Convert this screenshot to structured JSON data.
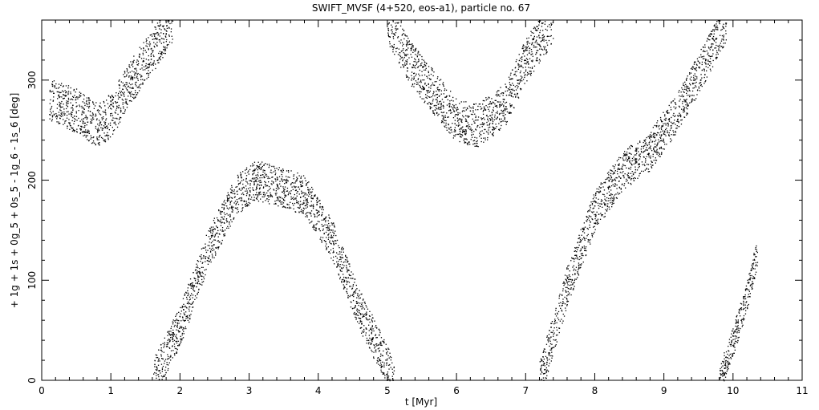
{
  "chart_data": {
    "type": "scatter",
    "title": "SWIFT_MVSF (4+520, eos-a1), particle no. 67",
    "xlabel": "t [Myr]",
    "ylabel": "+ 1g + 1s + 0g_5 + 0s_5 - 1g_6 - 1s_6 [deg]",
    "xlim": [
      0,
      11
    ],
    "ylim": [
      0,
      360
    ],
    "xticks": [
      0,
      1,
      2,
      3,
      4,
      5,
      6,
      7,
      8,
      9,
      10,
      11
    ],
    "yticks": [
      0,
      100,
      200,
      300
    ],
    "grid": false,
    "marker": "dot",
    "color": "#000000",
    "series": [
      {
        "x": [
          0.1,
          0.5,
          0.8,
          1.0,
          1.3,
          1.6,
          1.9
        ],
        "y": [
          280,
          270,
          255,
          265,
          300,
          330,
          360
        ],
        "spread": 22
      },
      {
        "x": [
          1.6,
          2.0,
          2.4,
          2.8,
          3.1,
          3.4,
          3.8,
          4.2,
          4.6,
          5.1
        ],
        "y": [
          0,
          55,
          130,
          185,
          200,
          195,
          185,
          140,
          70,
          0
        ],
        "spread": 20
      },
      {
        "x": [
          5.0,
          5.3,
          5.7,
          6.0,
          6.3,
          6.7,
          7.0,
          7.4
        ],
        "y": [
          360,
          320,
          285,
          260,
          255,
          275,
          320,
          360
        ],
        "spread": 22
      },
      {
        "x": [
          7.2,
          7.6,
          8.0,
          8.4,
          8.8,
          9.2,
          9.6,
          9.9
        ],
        "y": [
          0,
          95,
          170,
          210,
          230,
          270,
          320,
          360
        ],
        "spread": 20
      },
      {
        "x": [
          9.8,
          10.0,
          10.2,
          10.35
        ],
        "y": [
          0,
          40,
          85,
          130
        ],
        "spread": 15
      }
    ]
  }
}
